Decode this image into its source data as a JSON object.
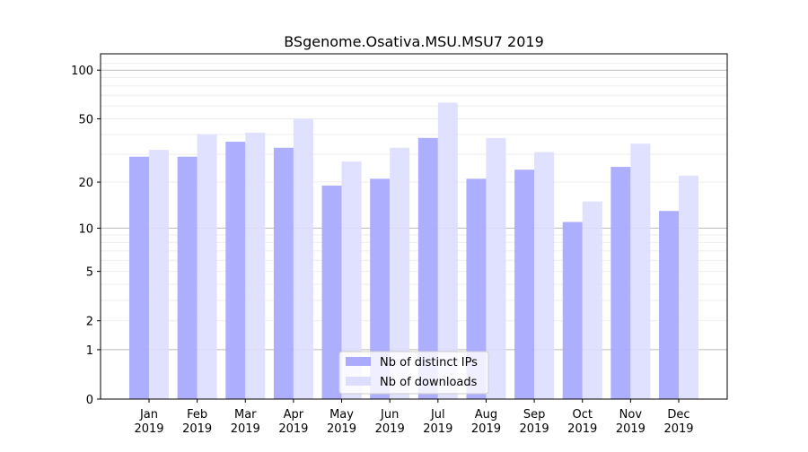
{
  "chart_data": {
    "type": "bar",
    "title": "BSgenome.Osativa.MSU.MSU7 2019",
    "xlabel": "",
    "ylabel": "",
    "yscale": "log(y+1)",
    "ylim": [
      0,
      120
    ],
    "yticks": [
      0,
      1,
      2,
      5,
      10,
      20,
      50,
      100
    ],
    "grid": true,
    "legend_position": "bottom-center",
    "categories": [
      "Jan\n2019",
      "Feb\n2019",
      "Mar\n2019",
      "Apr\n2019",
      "May\n2019",
      "Jun\n2019",
      "Jul\n2019",
      "Aug\n2019",
      "Sep\n2019",
      "Oct\n2019",
      "Nov\n2019",
      "Dec\n2019"
    ],
    "series": [
      {
        "name": "Nb of distinct IPs",
        "color": "#aaaaff",
        "values": [
          29,
          29,
          36,
          33,
          19,
          21,
          38,
          21,
          24,
          11,
          25,
          13
        ]
      },
      {
        "name": "Nb of downloads",
        "color": "#ddddff",
        "values": [
          32,
          40,
          41,
          50,
          27,
          33,
          63,
          38,
          31,
          15,
          35,
          22
        ]
      }
    ]
  }
}
